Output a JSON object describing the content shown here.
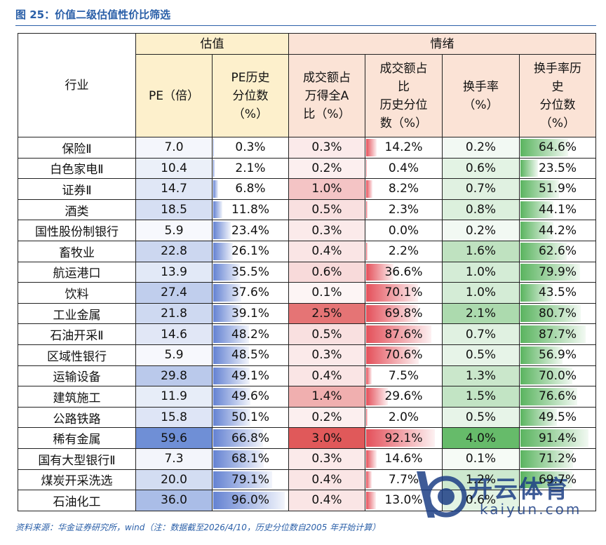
{
  "header": {
    "title": "图 25：价值二级估值性价比筛选"
  },
  "table": {
    "group_headers": [
      "估值",
      "情绪"
    ],
    "columns": [
      "行业",
      "PE（倍）",
      "PE历史\n分位数\n（%）",
      "成交额占\n万得全A\n比（%）",
      "成交额占\n比\n历史分位\n数（%）",
      "换手率\n（%）",
      "换手率历\n史\n分位数\n（%）"
    ],
    "rows": [
      [
        "保险Ⅱ",
        "7.0",
        "0.3%",
        "0.3%",
        "14.2%",
        "0.2%",
        "64.6%"
      ],
      [
        "白色家电Ⅱ",
        "10.4",
        "2.1%",
        "0.2%",
        "0.4%",
        "0.6%",
        "23.5%"
      ],
      [
        "证券Ⅱ",
        "14.7",
        "6.8%",
        "1.0%",
        "8.2%",
        "0.7%",
        "51.9%"
      ],
      [
        "酒类",
        "18.5",
        "11.8%",
        "0.5%",
        "2.3%",
        "0.8%",
        "44.1%"
      ],
      [
        "国性股份制银行",
        "5.9",
        "23.4%",
        "0.3%",
        "0.0%",
        "0.2%",
        "44.2%"
      ],
      [
        "畜牧业",
        "22.8",
        "26.1%",
        "0.4%",
        "2.2%",
        "1.6%",
        "62.6%"
      ],
      [
        "航运港口",
        "13.9",
        "35.5%",
        "0.6%",
        "36.6%",
        "1.0%",
        "79.9%"
      ],
      [
        "饮料",
        "27.4",
        "37.6%",
        "0.1%",
        "70.1%",
        "1.0%",
        "43.5%"
      ],
      [
        "工业金属",
        "21.8",
        "39.1%",
        "2.5%",
        "69.8%",
        "2.1%",
        "80.7%"
      ],
      [
        "石油开采Ⅱ",
        "14.6",
        "48.2%",
        "0.5%",
        "87.6%",
        "0.7%",
        "87.7%"
      ],
      [
        "区域性银行",
        "5.9",
        "48.5%",
        "0.3%",
        "70.6%",
        "0.5%",
        "56.9%"
      ],
      [
        "运输设备",
        "29.8",
        "49.1%",
        "0.4%",
        "7.5%",
        "1.3%",
        "70.0%"
      ],
      [
        "建筑施工",
        "11.9",
        "49.6%",
        "1.4%",
        "29.6%",
        "1.5%",
        "76.6%"
      ],
      [
        "公路铁路",
        "15.8",
        "50.1%",
        "0.2%",
        "2.0%",
        "0.5%",
        "49.5%"
      ],
      [
        "稀有金属",
        "59.6",
        "66.8%",
        "3.0%",
        "92.1%",
        "4.0%",
        "91.4%"
      ],
      [
        "国有大型银行Ⅱ",
        "7.3",
        "68.1%",
        "0.3%",
        "14.6%",
        "0.1%",
        "71.2%"
      ],
      [
        "煤炭开采洗选",
        "20.0",
        "79.1%",
        "0.4%",
        "7.7%",
        "1.2%",
        "69.7%"
      ],
      [
        "石油化工",
        "36.0",
        "96.0%",
        "0.4%",
        "13.0%",
        "0.6%",
        null
      ]
    ]
  },
  "footer": {
    "source": "资料来源：华金证券研究所，wind（注：数据截至2026/4/10，历史分位数自2005 年开始计算）"
  },
  "watermark": {
    "brand": "开云体育",
    "url": "kaiyun.com"
  }
}
